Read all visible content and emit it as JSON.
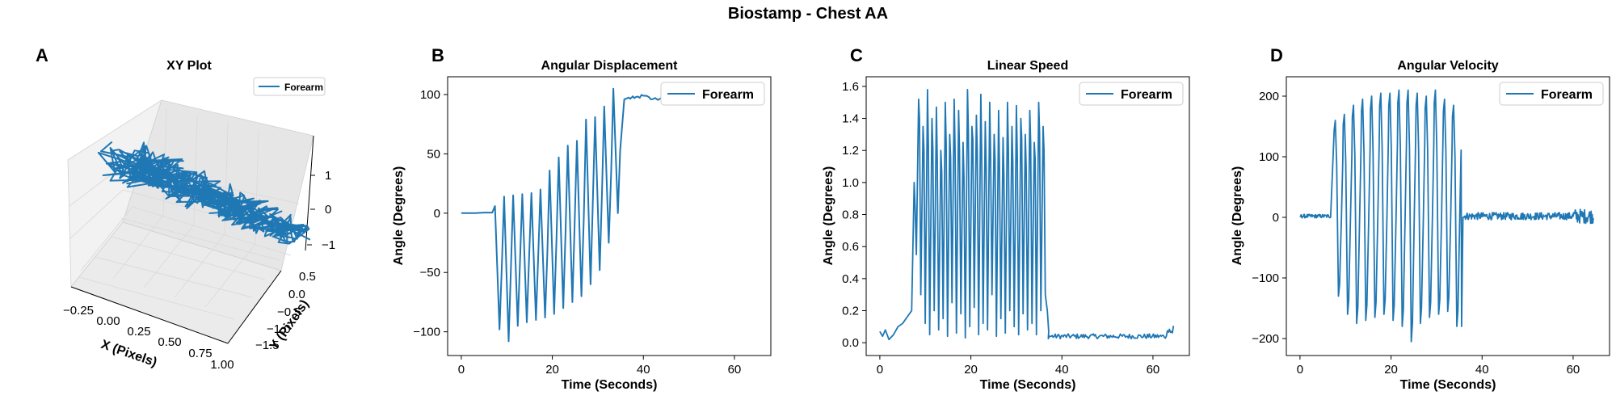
{
  "figure": {
    "title": "Biostamp - Chest AA"
  },
  "colors": {
    "series": "#1f77b4",
    "axis": "#000000",
    "pane_left": "#f2f2f2",
    "pane_right": "#e6e6e6",
    "pane_floor": "#ebebeb",
    "grid3d": "#dcdcdc"
  },
  "chart_data": [
    {
      "panel": "A",
      "type": "line",
      "projection": "3d",
      "title": "XY Plot",
      "xlabel": "X (Pixels)",
      "ylabel": "Y (Pixels)",
      "zlabel": "",
      "x_ticks": [
        "−0.25",
        "0.00",
        "0.25",
        "0.50",
        "0.75",
        "1.00"
      ],
      "y_ticks": [
        "−1.5",
        "−1.0",
        "−0.5",
        "0.0",
        "0.5"
      ],
      "z_ticks": [
        "1",
        "0",
        "−1"
      ],
      "xlim": [
        -0.3,
        1.05
      ],
      "ylim": [
        -1.6,
        0.6
      ],
      "zlim": [
        -1.2,
        1.4
      ],
      "legend": {
        "label": "Forearm",
        "position": "top-right"
      },
      "series": [
        {
          "name": "Forearm",
          "trajectory": "dense looping path, x -0.1..0.95, y -1.4..0.4, z -1..1"
        }
      ]
    },
    {
      "panel": "B",
      "type": "line",
      "title": "Angular Displacement",
      "xlabel": "Time (Seconds)",
      "ylabel": "Angle (Degrees)",
      "xlim": [
        -3,
        68
      ],
      "ylim": [
        -120,
        115
      ],
      "x_ticks": [
        "0",
        "20",
        "40",
        "60"
      ],
      "y_ticks": [
        "−100",
        "−50",
        "0",
        "50",
        "100"
      ],
      "x_tick_values": [
        0,
        20,
        40,
        60
      ],
      "y_tick_values": [
        -100,
        -50,
        0,
        50,
        100
      ],
      "grid": false,
      "legend": {
        "label": "Forearm",
        "position": "upper-right"
      },
      "series": [
        {
          "name": "Forearm",
          "baseline_start": [
            [
              0,
              0
            ],
            [
              1,
              0
            ],
            [
              3,
              0
            ],
            [
              5,
              0.5
            ],
            [
              6.8,
              0.5
            ]
          ],
          "cycles": [
            [
              7.9,
              6,
              -98
            ],
            [
              9.9,
              14,
              -108
            ],
            [
              11.9,
              15,
              -95
            ],
            [
              13.9,
              16,
              -92
            ],
            [
              15.9,
              17,
              -90
            ],
            [
              17.9,
              20,
              -88
            ],
            [
              19.9,
              36,
              -85
            ],
            [
              21.9,
              47,
              -80
            ],
            [
              23.9,
              57,
              -75
            ],
            [
              25.9,
              61,
              -70
            ],
            [
              27.9,
              79,
              -60
            ],
            [
              29.9,
              81,
              -48
            ],
            [
              31.9,
              90,
              -25
            ],
            [
              33.9,
              105,
              0
            ]
          ],
          "plateau": [
            [
              35.8,
              96
            ],
            [
              36.5,
              97
            ],
            [
              38,
              97
            ],
            [
              40,
              99
            ],
            [
              42,
              96
            ],
            [
              45,
              97
            ],
            [
              48,
              95
            ],
            [
              51,
              96
            ],
            [
              54,
              94
            ],
            [
              57,
              95
            ],
            [
              60,
              93
            ],
            [
              62,
              94
            ],
            [
              64,
              93
            ]
          ]
        }
      ]
    },
    {
      "panel": "C",
      "type": "line",
      "title": "Linear Speed",
      "xlabel": "Time (Seconds)",
      "ylabel": "Angle (Degrees)",
      "xlim": [
        -3,
        68
      ],
      "ylim": [
        -0.08,
        1.66
      ],
      "x_ticks": [
        "0",
        "20",
        "40",
        "60"
      ],
      "y_ticks": [
        "0.0",
        "0.2",
        "0.4",
        "0.6",
        "0.8",
        "1.0",
        "1.2",
        "1.4",
        "1.6"
      ],
      "x_tick_values": [
        0,
        20,
        40,
        60
      ],
      "y_tick_values": [
        0,
        0.2,
        0.4,
        0.6,
        0.8,
        1.0,
        1.2,
        1.4,
        1.6
      ],
      "grid": false,
      "legend": {
        "label": "Forearm",
        "position": "upper-right"
      },
      "series": [
        {
          "name": "Forearm",
          "baseline_start": [
            [
              0,
              0.07
            ],
            [
              0.6,
              0.04
            ],
            [
              1.2,
              0.08
            ],
            [
              2,
              0.02
            ],
            [
              3,
              0.05
            ],
            [
              4,
              0.1
            ],
            [
              5,
              0.12
            ],
            [
              6,
              0.16
            ],
            [
              7,
              0.2
            ]
          ],
          "active_segment": {
            "start": 7.2,
            "end": 36.5,
            "peaks": [
              1.0,
              1.52,
              1.35,
              1.58,
              1.4,
              1.47,
              1.2,
              1.5,
              1.3,
              1.52,
              1.45,
              1.25,
              1.58,
              1.35,
              1.42,
              1.55,
              1.38,
              1.5,
              1.3,
              1.45,
              1.28,
              1.5,
              1.35,
              1.48,
              1.4,
              1.3,
              1.45,
              1.25,
              1.5,
              1.35
            ],
            "troughs": [
              0.55,
              0.3,
              0.12,
              0.05,
              0.2,
              0.08,
              0.15,
              0.04,
              0.25,
              0.06,
              0.18,
              0.03,
              0.1,
              0.22,
              0.05,
              0.12,
              0.08,
              0.3,
              0.04,
              0.15,
              0.06,
              0.2,
              0.1,
              0.05,
              0.18,
              0.08,
              0.12,
              0.05,
              0.2,
              0.3
            ]
          },
          "tail": {
            "start": 37,
            "end": 64.5,
            "level": 0.04,
            "noise": 0.03,
            "end_bump": 0.11
          }
        }
      ]
    },
    {
      "panel": "D",
      "type": "line",
      "title": "Angular Velocity",
      "xlabel": "Time (Seconds)",
      "ylabel": "Angle (Degrees)",
      "xlim": [
        -3,
        68
      ],
      "ylim": [
        -228,
        232
      ],
      "x_ticks": [
        "0",
        "20",
        "40",
        "60"
      ],
      "y_ticks": [
        "−200",
        "−100",
        "0",
        "100",
        "200"
      ],
      "x_tick_values": [
        0,
        20,
        40,
        60
      ],
      "y_tick_values": [
        -200,
        -100,
        0,
        100,
        200
      ],
      "grid": false,
      "legend": {
        "label": "Forearm",
        "position": "upper-right"
      },
      "series": [
        {
          "name": "Forearm",
          "baseline_start": {
            "start": 0,
            "end": 6.8,
            "level": 2,
            "noise": 6
          },
          "cycles": [
            [
              7.5,
              160,
              -130
            ],
            [
              9.5,
              170,
              -160
            ],
            [
              11.5,
              185,
              -175
            ],
            [
              13.5,
              195,
              -170
            ],
            [
              15.5,
              200,
              -165
            ],
            [
              17.5,
              205,
              -160
            ],
            [
              19.5,
              205,
              -170
            ],
            [
              21.5,
              210,
              -180
            ],
            [
              23.5,
              210,
              -205
            ],
            [
              25.5,
              205,
              -175
            ],
            [
              27.5,
              200,
              -165
            ],
            [
              29.5,
              210,
              -160
            ],
            [
              31.5,
              195,
              -155
            ],
            [
              33.5,
              185,
              -180
            ]
          ],
          "tail": {
            "start": 36,
            "end": 64.5,
            "level": 2,
            "noise": 12
          }
        }
      ]
    }
  ]
}
